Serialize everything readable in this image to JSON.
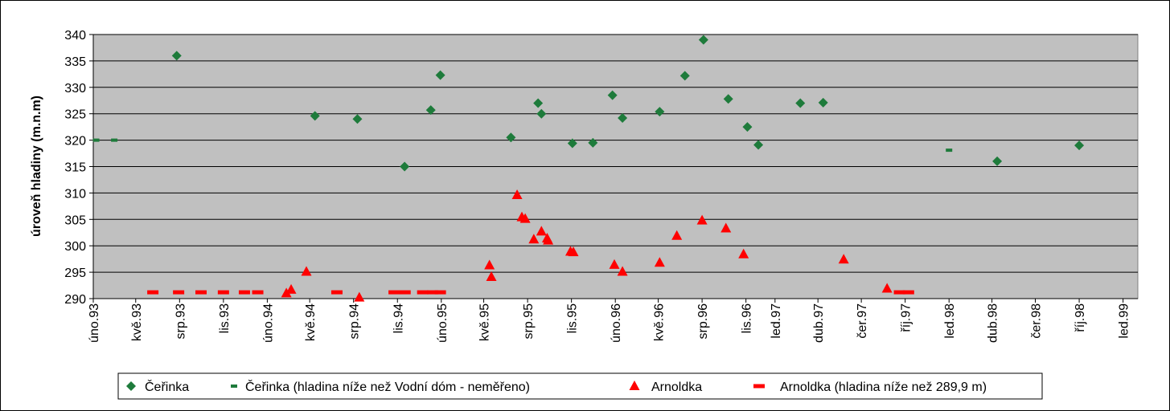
{
  "chart_data": {
    "type": "scatter",
    "title": "",
    "xlabel": "",
    "ylabel": "úroveň hladiny (m.n.m)",
    "ylim": [
      290,
      340
    ],
    "y_ticks": [
      290,
      295,
      300,
      305,
      310,
      315,
      320,
      325,
      330,
      335,
      340
    ],
    "xlim": [
      "1993-02-01",
      "1999-02-01"
    ],
    "x_ticks": [
      {
        "date": "1993-02-01",
        "label": "úno.93"
      },
      {
        "date": "1993-05-01",
        "label": "kvě.93"
      },
      {
        "date": "1993-08-01",
        "label": "srp.93"
      },
      {
        "date": "1993-11-01",
        "label": "lis.93"
      },
      {
        "date": "1994-02-01",
        "label": "úno.94"
      },
      {
        "date": "1994-05-01",
        "label": "kvě.94"
      },
      {
        "date": "1994-08-01",
        "label": "srp.94"
      },
      {
        "date": "1994-11-01",
        "label": "lis.94"
      },
      {
        "date": "1995-02-01",
        "label": "úno.95"
      },
      {
        "date": "1995-05-01",
        "label": "kvě.95"
      },
      {
        "date": "1995-08-01",
        "label": "srp.95"
      },
      {
        "date": "1995-11-01",
        "label": "lis.95"
      },
      {
        "date": "1996-02-01",
        "label": "úno.96"
      },
      {
        "date": "1996-05-01",
        "label": "kvě.96"
      },
      {
        "date": "1996-08-01",
        "label": "srp.96"
      },
      {
        "date": "1996-11-01",
        "label": "lis.96"
      },
      {
        "date": "1997-01-01",
        "label": "led.97"
      },
      {
        "date": "1997-04-01",
        "label": "dub.97"
      },
      {
        "date": "1997-07-01",
        "label": "čer.97"
      },
      {
        "date": "1997-10-01",
        "label": "říj.97"
      },
      {
        "date": "1998-01-01",
        "label": "led.98"
      },
      {
        "date": "1998-04-01",
        "label": "dub.98"
      },
      {
        "date": "1998-07-01",
        "label": "čer.98"
      },
      {
        "date": "1998-10-01",
        "label": "říj.98"
      },
      {
        "date": "1999-01-01",
        "label": "led.99"
      }
    ],
    "grid": {
      "horizontal": true,
      "vertical": false
    },
    "legend_position": "bottom",
    "series": [
      {
        "name": "Čeřinka",
        "marker": "diamond",
        "color": "#1E7B3B",
        "points": [
          {
            "x": "1993-07-26",
            "y": 336
          },
          {
            "x": "1994-05-12",
            "y": 324.6
          },
          {
            "x": "1994-08-09",
            "y": 324
          },
          {
            "x": "1994-11-16",
            "y": 315
          },
          {
            "x": "1995-01-10",
            "y": 325.7
          },
          {
            "x": "1995-01-30",
            "y": 332.3
          },
          {
            "x": "1995-06-27",
            "y": 320.5
          },
          {
            "x": "1995-08-23",
            "y": 327
          },
          {
            "x": "1995-08-30",
            "y": 325
          },
          {
            "x": "1995-11-03",
            "y": 319.4
          },
          {
            "x": "1995-12-16",
            "y": 319.5
          },
          {
            "x": "1996-01-26",
            "y": 328.5
          },
          {
            "x": "1996-02-16",
            "y": 324.2
          },
          {
            "x": "1996-05-04",
            "y": 325.4
          },
          {
            "x": "1996-06-26",
            "y": 332.2
          },
          {
            "x": "1996-08-04",
            "y": 339
          },
          {
            "x": "1996-09-25",
            "y": 327.8
          },
          {
            "x": "1996-11-04",
            "y": 322.5
          },
          {
            "x": "1996-11-27",
            "y": 319.1
          },
          {
            "x": "1997-02-23",
            "y": 327
          },
          {
            "x": "1997-04-12",
            "y": 327.1
          },
          {
            "x": "1998-04-12",
            "y": 316
          },
          {
            "x": "1998-10-01",
            "y": 319
          }
        ]
      },
      {
        "name": "Čeřinka (hladina níže než Vodní dóm - neměřeno)",
        "marker": "dash-short",
        "color": "#1E7B3B",
        "points": [
          {
            "x": "1993-02-07",
            "y": 320
          },
          {
            "x": "1993-03-17",
            "y": 320
          },
          {
            "x": "1998-01-01",
            "y": 318.1
          }
        ]
      },
      {
        "name": "Arnoldka",
        "marker": "triangle",
        "color": "#FF0000",
        "points": [
          {
            "x": "1994-03-13",
            "y": 291
          },
          {
            "x": "1994-03-23",
            "y": 291.7
          },
          {
            "x": "1994-04-24",
            "y": 295.1
          },
          {
            "x": "1994-08-13",
            "y": 290.2
          },
          {
            "x": "1995-05-13",
            "y": 296.3
          },
          {
            "x": "1995-05-17",
            "y": 294.1
          },
          {
            "x": "1995-07-10",
            "y": 309.6
          },
          {
            "x": "1995-07-20",
            "y": 305.4
          },
          {
            "x": "1995-07-27",
            "y": 305.1
          },
          {
            "x": "1995-08-14",
            "y": 301.2
          },
          {
            "x": "1995-08-30",
            "y": 302.7
          },
          {
            "x": "1995-09-11",
            "y": 301.4
          },
          {
            "x": "1995-09-13",
            "y": 301
          },
          {
            "x": "1995-10-30",
            "y": 298.9
          },
          {
            "x": "1995-11-05",
            "y": 298.8
          },
          {
            "x": "1996-01-30",
            "y": 296.4
          },
          {
            "x": "1996-02-16",
            "y": 295.1
          },
          {
            "x": "1996-05-04",
            "y": 296.8
          },
          {
            "x": "1996-06-09",
            "y": 301.9
          },
          {
            "x": "1996-08-01",
            "y": 304.8
          },
          {
            "x": "1996-09-20",
            "y": 303.3
          },
          {
            "x": "1996-10-27",
            "y": 298.4
          },
          {
            "x": "1997-05-25",
            "y": 297.4
          },
          {
            "x": "1997-08-24",
            "y": 291.9
          }
        ]
      },
      {
        "name": "Arnoldka (hladina níže než 289,9 m)",
        "marker": "dash-long",
        "color": "#FF0000",
        "points": [
          {
            "x": "1993-06-06",
            "y": 291.2
          },
          {
            "x": "1993-07-30",
            "y": 291.2
          },
          {
            "x": "1993-09-15",
            "y": 291.2
          },
          {
            "x": "1993-11-01",
            "y": 291.2
          },
          {
            "x": "1993-12-15",
            "y": 291.2
          },
          {
            "x": "1994-01-12",
            "y": 291.2
          },
          {
            "x": "1994-06-27",
            "y": 291.2
          },
          {
            "x": "1994-10-25",
            "y": 291.2
          },
          {
            "x": "1994-11-17",
            "y": 291.2
          },
          {
            "x": "1994-12-24",
            "y": 291.2
          },
          {
            "x": "1995-01-14",
            "y": 291.2
          },
          {
            "x": "1995-01-30",
            "y": 291.2
          },
          {
            "x": "1997-09-19",
            "y": 291.2
          },
          {
            "x": "1997-10-08",
            "y": 291.2
          }
        ]
      }
    ]
  }
}
